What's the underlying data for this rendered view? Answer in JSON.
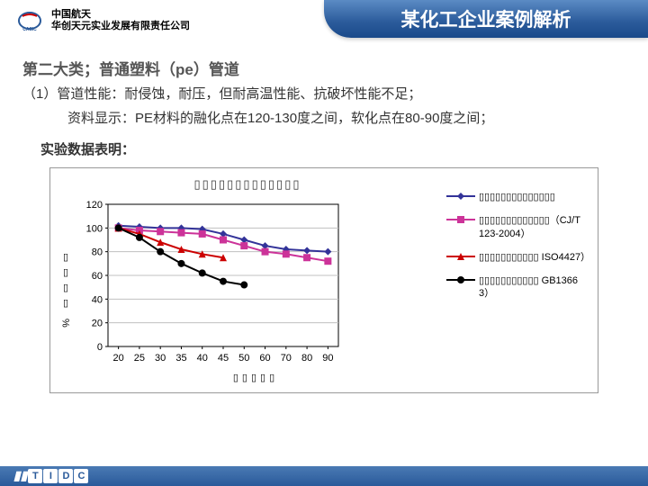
{
  "header": {
    "company_line1": "中国航天",
    "company_line2": "华创天元实业发展有限责任公司",
    "title": "某化工企业案例解析"
  },
  "body": {
    "subtitle": "第二大类；普通塑料（pe）管道",
    "desc1": "（1）管道性能：耐侵蚀，耐压，但耐高温性能、抗破坏性能不足；",
    "desc2": "资料显示：PE材料的融化点在120-130度之间，软化点在80-90度之间；",
    "exp_label": "实验数据表明："
  },
  "chart": {
    "title": "▯▯▯▯▯▯▯▯▯▯▯▯▯",
    "yaxis_label": "▯▯▯▯ %",
    "xaxis_label": "▯▯▯▯▯",
    "ylim": [
      0,
      120
    ],
    "ytick_step": 20,
    "ytick_labels": [
      "0",
      "20",
      "40",
      "60",
      "80",
      "100",
      "120"
    ],
    "categories": [
      "20",
      "25",
      "30",
      "35",
      "40",
      "45",
      "50",
      "60",
      "70",
      "80",
      "90"
    ],
    "plot_bg": "#ffffff",
    "grid_color": "#c0c0c0",
    "axis_color": "#000000",
    "tick_fontsize": 11,
    "series": [
      {
        "name": "s1",
        "label": "▯▯▯▯▯▯▯▯▯▯▯▯▯▯",
        "color": "#333399",
        "marker": "diamond",
        "values": [
          102,
          101,
          100,
          100,
          99,
          95,
          90,
          85,
          82,
          81,
          80
        ]
      },
      {
        "name": "s2",
        "label": "▯▯▯▯▯▯▯▯▯▯▯▯▯（CJ/T123-2004）",
        "color": "#cc3399",
        "marker": "square",
        "values": [
          100,
          98,
          97,
          96,
          95,
          90,
          85,
          80,
          78,
          75,
          72
        ]
      },
      {
        "name": "s3",
        "label": "▯▯▯▯▯▯▯▯▯▯▯ ISO4427）",
        "color": "#cc0000",
        "marker": "triangle",
        "values": [
          100,
          95,
          88,
          82,
          78,
          75,
          null,
          null,
          null,
          null,
          null
        ]
      },
      {
        "name": "s4",
        "label": "▯▯▯▯▯▯▯▯▯▯▯ GB13663）",
        "color": "#000000",
        "marker": "circle",
        "values": [
          100,
          92,
          80,
          70,
          62,
          55,
          52,
          null,
          null,
          null,
          null
        ]
      }
    ],
    "line_width": 2,
    "marker_size": 8
  },
  "footer": {
    "logo_text": "TIDC"
  }
}
